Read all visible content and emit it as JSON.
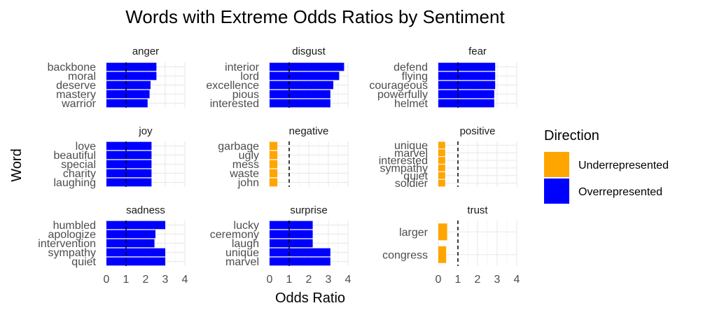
{
  "chart_data": {
    "type": "bar",
    "orientation": "horizontal",
    "title": "Words with Extreme Odds Ratios by Sentiment",
    "xlabel": "Odds Ratio",
    "ylabel": "Word",
    "xlim": [
      0,
      4
    ],
    "x_ticks": [
      "0",
      "1",
      "2",
      "3",
      "4"
    ],
    "reference_line": 1,
    "grid": true,
    "legend": {
      "title": "Direction",
      "placement": "right",
      "items": [
        {
          "label": "Underrepresented",
          "color": "#FFA500"
        },
        {
          "label": "Overrepresented",
          "color": "#0000FF"
        }
      ]
    },
    "panels": [
      {
        "name": "anger",
        "words": [
          "backbone",
          "moral",
          "deserve",
          "mastery",
          "warrior"
        ],
        "values": [
          2.55,
          2.55,
          2.25,
          2.2,
          2.1
        ],
        "direction": [
          "Overrepresented",
          "Overrepresented",
          "Overrepresented",
          "Overrepresented",
          "Overrepresented"
        ]
      },
      {
        "name": "disgust",
        "words": [
          "interior",
          "lord",
          "excellence",
          "pious",
          "interested"
        ],
        "values": [
          3.8,
          3.55,
          3.25,
          3.1,
          3.1
        ],
        "direction": [
          "Overrepresented",
          "Overrepresented",
          "Overrepresented",
          "Overrepresented",
          "Overrepresented"
        ]
      },
      {
        "name": "fear",
        "words": [
          "defend",
          "flying",
          "courageous",
          "powerfully",
          "helmet"
        ],
        "values": [
          2.9,
          2.9,
          2.9,
          2.85,
          2.85
        ],
        "direction": [
          "Overrepresented",
          "Overrepresented",
          "Overrepresented",
          "Overrepresented",
          "Overrepresented"
        ]
      },
      {
        "name": "joy",
        "words": [
          "love",
          "beautiful",
          "special",
          "charity",
          "laughing"
        ],
        "values": [
          2.3,
          2.3,
          2.3,
          2.3,
          2.3
        ],
        "direction": [
          "Overrepresented",
          "Overrepresented",
          "Overrepresented",
          "Overrepresented",
          "Overrepresented"
        ]
      },
      {
        "name": "negative",
        "words": [
          "garbage",
          "ugly",
          "mess",
          "waste",
          "john"
        ],
        "values": [
          0.4,
          0.4,
          0.4,
          0.4,
          0.4
        ],
        "direction": [
          "Underrepresented",
          "Underrepresented",
          "Underrepresented",
          "Underrepresented",
          "Underrepresented"
        ]
      },
      {
        "name": "positive",
        "words": [
          "unique",
          "marvel",
          "interested",
          "sympathy",
          "quiet",
          "soldier"
        ],
        "values": [
          0.35,
          0.35,
          0.35,
          0.35,
          0.35,
          0.35
        ],
        "direction": [
          "Underrepresented",
          "Underrepresented",
          "Underrepresented",
          "Underrepresented",
          "Underrepresented",
          "Underrepresented"
        ]
      },
      {
        "name": "sadness",
        "words": [
          "humbled",
          "apologize",
          "intervention",
          "sympathy",
          "quiet"
        ],
        "values": [
          3.0,
          2.5,
          2.45,
          3.0,
          3.0
        ],
        "direction": [
          "Overrepresented",
          "Overrepresented",
          "Overrepresented",
          "Overrepresented",
          "Overrepresented"
        ]
      },
      {
        "name": "surprise",
        "words": [
          "lucky",
          "ceremony",
          "laugh",
          "unique",
          "marvel"
        ],
        "values": [
          2.2,
          2.2,
          2.2,
          3.1,
          3.1
        ],
        "direction": [
          "Overrepresented",
          "Overrepresented",
          "Overrepresented",
          "Overrepresented",
          "Overrepresented"
        ]
      },
      {
        "name": "trust",
        "words": [
          "larger",
          "congress"
        ],
        "values": [
          0.45,
          0.4
        ],
        "direction": [
          "Underrepresented",
          "Underrepresented"
        ]
      }
    ]
  }
}
